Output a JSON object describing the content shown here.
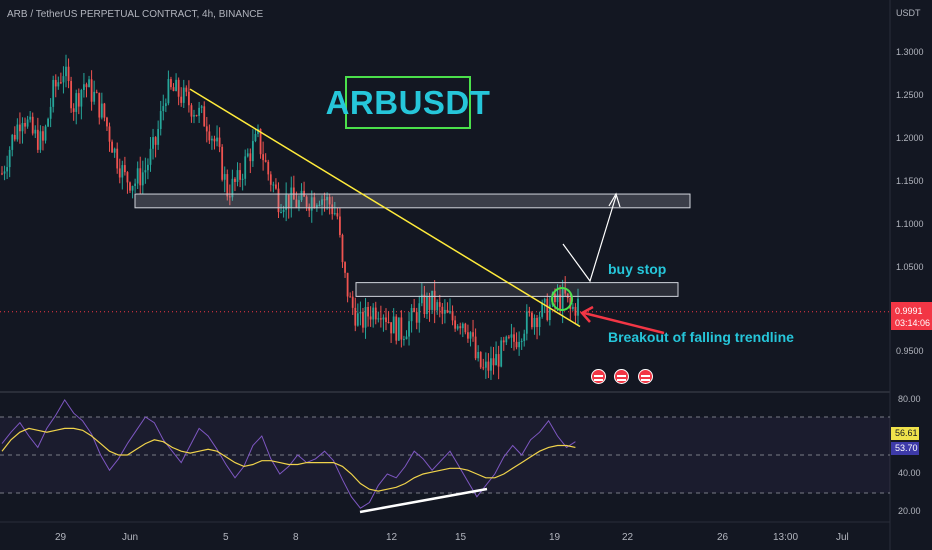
{
  "header": {
    "symbol_line": "ARB / TetherUS PERPETUAL CONTRACT, 4h, BINANCE"
  },
  "price_axis": {
    "currency": "USDT",
    "ticks": [
      "1.3000",
      "1.2500",
      "1.2000",
      "1.1500",
      "1.1000",
      "1.0500",
      "0.9500"
    ],
    "last_price": "0.9991",
    "countdown": "03:14:06"
  },
  "rsi_axis": {
    "ticks": [
      "80.00",
      "40.00",
      "20.00"
    ],
    "rsi_value": "56.61",
    "ma_value": "53.70"
  },
  "x_axis": {
    "ticks": [
      "29",
      "Jun",
      "5",
      "8",
      "12",
      "15",
      "19",
      "22",
      "26",
      "13:00",
      "Jul"
    ]
  },
  "annotations": {
    "title": "ARBUSDT",
    "buy_stop": "buy stop",
    "breakout": "Breakout of falling trendline"
  },
  "events": {
    "icons": [
      "us-flag-icon",
      "us-flag-icon",
      "us-flag-icon"
    ]
  },
  "colors": {
    "background": "#131722",
    "bullish": "#26a69a",
    "bearish": "#ef5350",
    "trendline": "#ffeb3b",
    "annotation_text": "#26c6da",
    "title_border": "#4be04b",
    "rsi_line": "#7e57c2",
    "rsi_ma": "#f0d34b",
    "arrow": "#f23645"
  },
  "chart_data": {
    "type": "candlestick",
    "symbol": "ARBUSDT",
    "timeframe": "4h",
    "price_range": [
      0.905,
      1.325
    ],
    "last_price": 0.9991,
    "trend_path": [
      [
        0,
        1.16
      ],
      [
        4,
        1.2
      ],
      [
        8,
        1.23
      ],
      [
        12,
        1.205
      ],
      [
        16,
        1.195
      ],
      [
        20,
        1.255
      ],
      [
        24,
        1.28
      ],
      [
        28,
        1.24
      ],
      [
        32,
        1.265
      ],
      [
        36,
        1.25
      ],
      [
        40,
        1.225
      ],
      [
        44,
        1.185
      ],
      [
        48,
        1.155
      ],
      [
        52,
        1.15
      ],
      [
        56,
        1.165
      ],
      [
        60,
        1.195
      ],
      [
        64,
        1.255
      ],
      [
        68,
        1.255
      ],
      [
        72,
        1.245
      ],
      [
        76,
        1.232
      ],
      [
        80,
        1.22
      ],
      [
        84,
        1.19
      ],
      [
        88,
        1.14
      ],
      [
        92,
        1.15
      ],
      [
        96,
        1.18
      ],
      [
        100,
        1.2
      ],
      [
        104,
        1.16
      ],
      [
        108,
        1.13
      ],
      [
        112,
        1.13
      ],
      [
        116,
        1.125
      ],
      [
        120,
        1.13
      ],
      [
        124,
        1.135
      ],
      [
        128,
        1.125
      ],
      [
        131,
        1.11
      ],
      [
        133,
        1.05
      ],
      [
        136,
        1.01
      ],
      [
        140,
        0.985
      ],
      [
        144,
        1.0
      ],
      [
        148,
        1.005
      ],
      [
        152,
        0.985
      ],
      [
        156,
        0.975
      ],
      [
        160,
        0.99
      ],
      [
        164,
        1.005
      ],
      [
        168,
        1.01
      ],
      [
        172,
        0.995
      ],
      [
        176,
        0.99
      ],
      [
        180,
        0.99
      ],
      [
        183,
        0.975
      ],
      [
        185,
        0.945
      ],
      [
        188,
        0.93
      ],
      [
        192,
        0.94
      ],
      [
        196,
        0.955
      ],
      [
        200,
        0.965
      ],
      [
        204,
        0.985
      ],
      [
        208,
        0.995
      ],
      [
        212,
        1.0
      ],
      [
        216,
        1.01
      ],
      [
        220,
        1.015
      ],
      [
        222,
        1.0
      ],
      [
        225,
        1.008
      ]
    ],
    "falling_trendline": [
      [
        1.258,
        1.258
      ],
      [
        0.982,
        0.982
      ]
    ],
    "resistance_zone": [
      1.12,
      1.136
    ],
    "buy_stop_zone": [
      1.017,
      1.033
    ],
    "rsi": {
      "upper": 70,
      "middle": 50,
      "lower": 30,
      "last": 56.61,
      "ma_last": 53.7,
      "rsi_path": [
        56,
        62,
        67,
        60,
        54,
        64,
        71,
        79,
        72,
        68,
        61,
        50,
        42,
        48,
        56,
        63,
        70,
        67,
        58,
        52,
        46,
        55,
        64,
        60,
        53,
        45,
        38,
        44,
        55,
        60,
        48,
        40,
        44,
        50,
        46,
        48,
        52,
        47,
        37,
        28,
        22,
        25,
        34,
        40,
        38,
        44,
        52,
        48,
        42,
        47,
        52,
        44,
        36,
        28,
        34,
        40,
        49,
        55,
        50,
        58,
        62,
        68,
        60,
        54,
        57
      ],
      "ma_path": [
        52,
        58,
        62,
        64,
        63,
        62,
        63,
        64,
        64,
        63,
        60,
        56,
        52,
        50,
        50,
        53,
        56,
        58,
        57,
        54,
        52,
        51,
        52,
        53,
        52,
        49,
        46,
        44,
        45,
        47,
        47,
        46,
        45,
        45,
        46,
        46,
        46,
        46,
        44,
        40,
        35,
        32,
        31,
        32,
        33,
        35,
        38,
        40,
        41,
        42,
        43,
        43,
        42,
        40,
        38,
        38,
        40,
        43,
        46,
        49,
        52,
        54,
        55,
        55,
        54
      ]
    }
  }
}
